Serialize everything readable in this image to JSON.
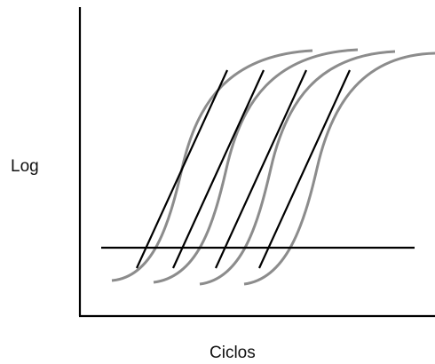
{
  "diagram": {
    "y_axis_label": "Log",
    "x_axis_label": "Ciclos",
    "colors": {
      "axis": "#000000",
      "curve": "#8c8c8c",
      "tangent": "#000000",
      "threshold": "#000000"
    },
    "curve_count": 4
  }
}
